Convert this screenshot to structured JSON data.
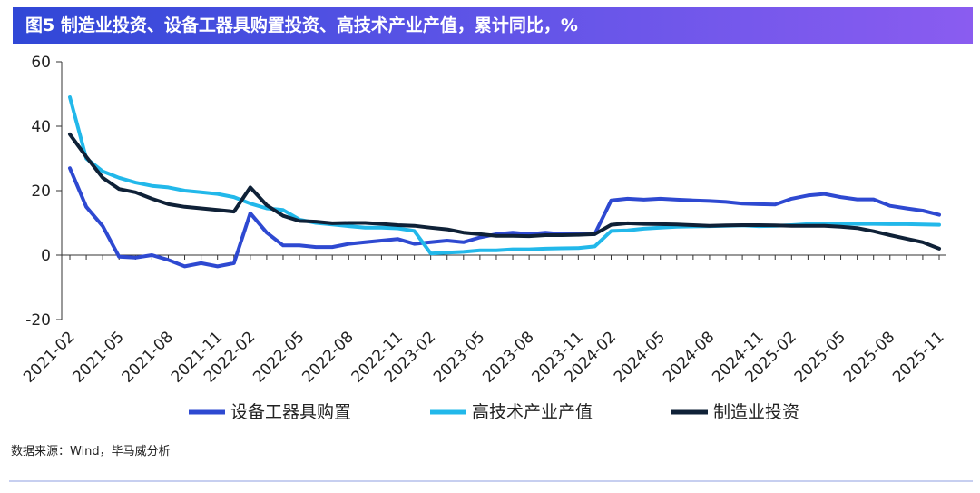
{
  "title": "图5 制造业投资、设备工器具购置投资、高技术产业产值，累计同比，%",
  "source": "数据来源：Wind，毕马威分析",
  "chart_data": {
    "type": "line",
    "title": "图5 制造业投资、设备工器具购置投资、高技术产业产值，累计同比，%",
    "ylabel": "%",
    "ylim": [
      -20,
      60
    ],
    "yticks": [
      -20,
      0,
      20,
      40,
      60
    ],
    "grid": false,
    "legend_position": "bottom",
    "x": [
      "2021-02",
      "2021-03",
      "2021-04",
      "2021-05",
      "2021-06",
      "2021-07",
      "2021-08",
      "2021-09",
      "2021-10",
      "2021-11",
      "2021-12",
      "2022-02",
      "2022-03",
      "2022-04",
      "2022-05",
      "2022-06",
      "2022-07",
      "2022-08",
      "2022-09",
      "2022-10",
      "2022-11",
      "2022-12",
      "2023-02",
      "2023-03",
      "2023-04",
      "2023-05",
      "2023-06",
      "2023-07",
      "2023-08",
      "2023-09",
      "2023-10",
      "2023-11",
      "2023-12",
      "2024-02",
      "2024-03",
      "2024-04",
      "2024-05",
      "2024-06",
      "2024-07",
      "2024-08",
      "2024-09",
      "2024-10",
      "2024-11",
      "2024-12",
      "2025-02",
      "2025-03",
      "2025-04",
      "2025-05",
      "2025-06",
      "2025-07",
      "2025-08",
      "2025-09",
      "2025-10",
      "2025-11"
    ],
    "xticks": [
      "2021-02",
      "2021-05",
      "2021-08",
      "2021-11",
      "2022-02",
      "2022-05",
      "2022-08",
      "2022-11",
      "2023-02",
      "2023-05",
      "2023-08",
      "2023-11",
      "2024-02",
      "2024-05",
      "2024-08",
      "2024-11",
      "2025-02",
      "2025-05",
      "2025-08",
      "2025-11"
    ],
    "series": [
      {
        "name": "设备工器具购置",
        "color": "#2e49d1",
        "values": [
          27,
          15,
          9,
          -0.5,
          -0.8,
          0,
          -1.5,
          -3.5,
          -2.5,
          -3.5,
          -2.5,
          13,
          7,
          3,
          3,
          2.5,
          2.5,
          3.5,
          4,
          4.5,
          5,
          3.5,
          4,
          4.5,
          4,
          5.5,
          6.5,
          7,
          6.5,
          7,
          6.5,
          6.5,
          6.5,
          17,
          17.5,
          17.2,
          17.5,
          17.2,
          17,
          16.8,
          16.5,
          16,
          15.8,
          15.7,
          17.5,
          18.5,
          19,
          18,
          17.3,
          17.3,
          15.3,
          14.5,
          13.8,
          12.5
        ]
      },
      {
        "name": "高技术产业产值",
        "color": "#22b8ea",
        "values": [
          49,
          30,
          26,
          24,
          22.5,
          21.5,
          21,
          20,
          19.5,
          19,
          18,
          16,
          14.5,
          14,
          11,
          10,
          9.5,
          9,
          8.5,
          8.5,
          8.3,
          7.5,
          0.5,
          0.8,
          1,
          1.5,
          1.5,
          1.8,
          1.8,
          2,
          2.1,
          2.2,
          2.7,
          7.5,
          7.7,
          8.2,
          8.5,
          8.8,
          8.9,
          9,
          9.1,
          9.2,
          9,
          9.1,
          9.3,
          9.6,
          9.8,
          9.8,
          9.7,
          9.7,
          9.6,
          9.6,
          9.5,
          9.4
        ]
      },
      {
        "name": "制造业投资",
        "color": "#0f2137",
        "values": [
          37.5,
          30.5,
          24,
          20.5,
          19.5,
          17.5,
          15.8,
          15,
          14.5,
          14,
          13.5,
          21,
          15.5,
          12.2,
          10.6,
          10.4,
          9.9,
          10,
          10,
          9.7,
          9.3,
          9.1,
          8.5,
          8,
          7,
          6.5,
          6,
          6,
          5.9,
          6.2,
          6.2,
          6.3,
          6.5,
          9.4,
          9.9,
          9.7,
          9.6,
          9.5,
          9.3,
          9.1,
          9.2,
          9.3,
          9.3,
          9.2,
          9.1,
          9.1,
          9.1,
          8.8,
          8.4,
          7.4,
          6.2,
          5.1,
          4,
          2
        ]
      }
    ]
  }
}
